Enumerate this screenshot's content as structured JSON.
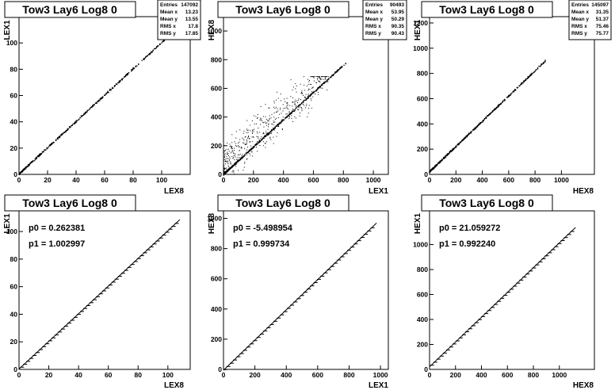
{
  "chart_data": [
    {
      "type": "scatter",
      "title": "Tow3 Lay6 Log8 0",
      "xlabel": "LEX8",
      "ylabel": "LEX1",
      "xlim": [
        0,
        120
      ],
      "ylim": [
        0,
        120
      ],
      "xticks": [
        "0",
        "20",
        "40",
        "60",
        "80",
        "100"
      ],
      "yticks": [
        "0",
        "20",
        "40",
        "60",
        "80",
        "100"
      ],
      "stats": [
        {
          "label": "Entries",
          "value": "147092"
        },
        {
          "label": "Mean x",
          "value": "13.23"
        },
        {
          "label": "Mean y",
          "value": "13.55"
        },
        {
          "label": "RMS x",
          "value": "17.8"
        },
        {
          "label": "RMS y",
          "value": "17.85"
        }
      ],
      "trend": {
        "slope": 1.0,
        "intercept": 0.3,
        "xmin": 0,
        "xmax": 108
      },
      "noise": {
        "n": 0,
        "xmin": 0,
        "xmax": 0
      }
    },
    {
      "type": "scatter",
      "title": "Tow3 Lay6 Log8 0",
      "xlabel": "LEX1",
      "ylabel": "HEX8",
      "xlim": [
        0,
        1100
      ],
      "ylim": [
        0,
        1100
      ],
      "xticks": [
        "0",
        "200",
        "400",
        "600",
        "800",
        "1000"
      ],
      "yticks": [
        "0",
        "200",
        "400",
        "600",
        "800",
        "1000"
      ],
      "stats": [
        {
          "label": "Entries",
          "value": "90493"
        },
        {
          "label": "Mean x",
          "value": "53.95"
        },
        {
          "label": "Mean y",
          "value": "50.29"
        },
        {
          "label": "RMS x",
          "value": "90.35"
        },
        {
          "label": "RMS y",
          "value": "90.43"
        }
      ],
      "trend": {
        "slope": 0.95,
        "intercept": 0,
        "xmin": 0,
        "xmax": 820
      },
      "noise": {
        "n": 520,
        "xmin": 0,
        "xmax": 700
      }
    },
    {
      "type": "scatter",
      "title": "Tow3 Lay6 Log8 0",
      "xlabel": "HEX8",
      "ylabel": "HEX1",
      "xlim": [
        0,
        1250
      ],
      "ylim": [
        0,
        1250
      ],
      "xticks": [
        "0",
        "200",
        "400",
        "600",
        "800",
        "1000"
      ],
      "yticks": [
        "0",
        "200",
        "400",
        "600",
        "800",
        "1000",
        "1200"
      ],
      "stats": [
        {
          "label": "Entries",
          "value": "145097"
        },
        {
          "label": "Mean x",
          "value": "31.35"
        },
        {
          "label": "Mean y",
          "value": "51.37"
        },
        {
          "label": "RMS x",
          "value": "75.46"
        },
        {
          "label": "RMS y",
          "value": "75.77"
        }
      ],
      "trend": {
        "slope": 1.0,
        "intercept": 21,
        "xmin": 0,
        "xmax": 880
      },
      "noise": {
        "n": 0,
        "xmin": 0,
        "xmax": 0
      }
    },
    {
      "type": "line",
      "title": "Tow3 Lay6 Log8 0",
      "xlabel": "LEX8",
      "ylabel": "LEX1",
      "xlim": [
        0,
        115
      ],
      "ylim": [
        0,
        115
      ],
      "xticks": [
        "0",
        "20",
        "40",
        "60",
        "80",
        "100"
      ],
      "yticks": [
        "0",
        "20",
        "40",
        "60",
        "80",
        "100"
      ],
      "fit": {
        "p0": "0.262381",
        "p1": "1.002997",
        "p0_value": 0.262381,
        "p1_value": 1.002997
      },
      "fit_label_p0": "p0 = 0.262381",
      "fit_label_p1": "p1 = 1.002997",
      "fit_range": [
        0,
        108
      ],
      "marker_range": [
        2,
        106
      ],
      "marker_count": 50
    },
    {
      "type": "line",
      "title": "Tow3 Lay6 Log8 0",
      "xlabel": "LEX1",
      "ylabel": "HEX8",
      "xlim": [
        0,
        1050
      ],
      "ylim": [
        0,
        1050
      ],
      "xticks": [
        "0",
        "200",
        "400",
        "600",
        "800",
        "1000"
      ],
      "yticks": [
        "0",
        "200",
        "400",
        "600",
        "800",
        "1000"
      ],
      "fit": {
        "p0": "-5.498954",
        "p1": "0.999734",
        "p0_value": -5.498954,
        "p1_value": 0.999734
      },
      "fit_label_p0": "p0 = -5.498954",
      "fit_label_p1": "p1 = 0.999734",
      "fit_range": [
        0,
        975
      ],
      "marker_range": [
        10,
        950
      ],
      "marker_count": 45
    },
    {
      "type": "line",
      "title": "Tow3 Lay6 Log8 0",
      "xlabel": "HEX8",
      "ylabel": "HEX1",
      "xlim": [
        0,
        1270
      ],
      "ylim": [
        0,
        1270
      ],
      "xticks": [
        "0",
        "200",
        "400",
        "600",
        "800",
        "1000"
      ],
      "yticks": [
        "0",
        "200",
        "400",
        "600",
        "800",
        "1000"
      ],
      "fit": {
        "p0": "21.059272",
        "p1": "0.992240",
        "p0_value": 21.059272,
        "p1_value": 0.99224
      },
      "fit_label_p0": "p0 = 21.059272",
      "fit_label_p1": "p1 = 0.992240",
      "fit_range": [
        0,
        1125
      ],
      "marker_range": [
        20,
        1100
      ],
      "marker_count": 45
    }
  ]
}
